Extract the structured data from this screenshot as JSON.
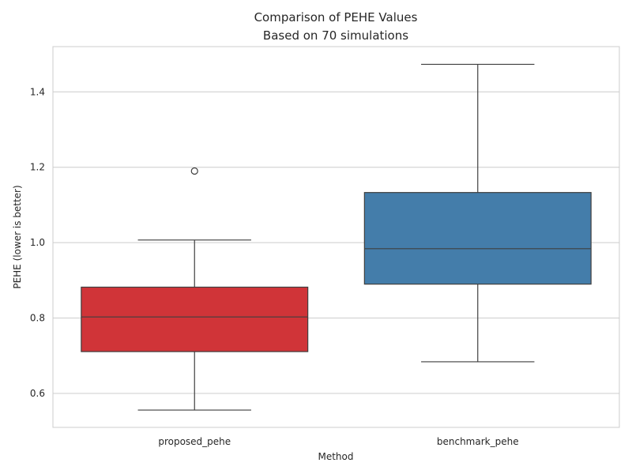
{
  "chart_data": {
    "type": "boxplot",
    "title": "Comparison of PEHE Values",
    "subtitle": "Based on 70 simulations",
    "xlabel": "Method",
    "ylabel": "PEHE (lower is better)",
    "ylim": [
      0.51,
      1.52
    ],
    "yticks": [
      0.6,
      0.8,
      1.0,
      1.2,
      1.4
    ],
    "ytick_labels": [
      "0.6",
      "0.8",
      "1.0",
      "1.2",
      "1.4"
    ],
    "grid": true,
    "categories": [
      "proposed_pehe",
      "benchmark_pehe"
    ],
    "boxes": [
      {
        "name": "proposed_pehe",
        "color": "#d03438",
        "whisker_low": 0.556,
        "q1": 0.711,
        "median": 0.803,
        "q3": 0.882,
        "whisker_high": 1.007,
        "outliers": [
          1.19
        ]
      },
      {
        "name": "benchmark_pehe",
        "color": "#447daa",
        "whisker_low": 0.684,
        "q1": 0.89,
        "median": 0.984,
        "q3": 1.133,
        "whisker_high": 1.473,
        "outliers": []
      }
    ]
  }
}
